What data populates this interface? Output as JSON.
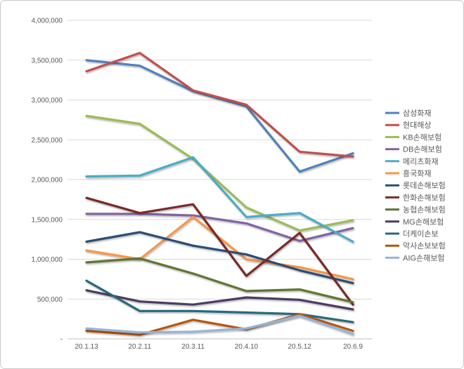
{
  "chart_data": {
    "type": "line",
    "title": "",
    "categories": [
      "20.1.13",
      "20.2.11",
      "20.3.11",
      "20.4.10",
      "20.5.12",
      "20.6.9"
    ],
    "series": [
      {
        "name": "삼성화재",
        "color": "#4F81BD",
        "values": [
          3500000,
          3430000,
          3110000,
          2920000,
          2100000,
          2330000
        ]
      },
      {
        "name": "현대해상",
        "color": "#C0504D",
        "values": [
          3360000,
          3590000,
          3120000,
          2940000,
          2350000,
          2290000
        ]
      },
      {
        "name": "KB손해보험",
        "color": "#9BBB59",
        "values": [
          2800000,
          2700000,
          2260000,
          1650000,
          1360000,
          1490000
        ]
      },
      {
        "name": "DB손해보험",
        "color": "#8064A2",
        "values": [
          1570000,
          1570000,
          1550000,
          1450000,
          1230000,
          1390000
        ]
      },
      {
        "name": "메리츠화재",
        "color": "#4BACC6",
        "values": [
          2040000,
          2050000,
          2280000,
          1530000,
          1580000,
          1220000
        ]
      },
      {
        "name": "흥국화재",
        "color": "#F79646",
        "values": [
          1110000,
          1000000,
          1530000,
          1000000,
          900000,
          750000
        ]
      },
      {
        "name": "롯데손해보험",
        "color": "#2C4D75",
        "values": [
          1220000,
          1340000,
          1170000,
          1060000,
          860000,
          700000
        ]
      },
      {
        "name": "한화손해보험",
        "color": "#772C2A",
        "values": [
          1770000,
          1580000,
          1690000,
          790000,
          1330000,
          430000
        ]
      },
      {
        "name": "농협손해보험",
        "color": "#5F7530",
        "values": [
          960000,
          1010000,
          820000,
          600000,
          620000,
          460000
        ]
      },
      {
        "name": "MG손해보험",
        "color": "#4D3B62",
        "values": [
          610000,
          470000,
          430000,
          520000,
          490000,
          370000
        ]
      },
      {
        "name": "더케이손보",
        "color": "#276A7D",
        "values": [
          730000,
          350000,
          350000,
          330000,
          310000,
          210000
        ]
      },
      {
        "name": "악사손보보험",
        "color": "#B65708",
        "values": [
          100000,
          50000,
          240000,
          120000,
          310000,
          100000
        ]
      },
      {
        "name": "AIG손해보험",
        "color": "#95B3D7",
        "values": [
          130000,
          80000,
          90000,
          130000,
          290000,
          60000
        ]
      }
    ],
    "y_axis": {
      "min": 0,
      "max": 4000000,
      "step": 500000,
      "tick_labels": [
        "-",
        "500,000",
        "1,000,000",
        "1,500,000",
        "2,000,000",
        "2,500,000",
        "3,000,000",
        "3,500,000",
        "4,000,000"
      ]
    },
    "grid": true,
    "legend_position": "right",
    "colors": {
      "gridline": "#D9D9D9",
      "axis_line": "#BFBFBF",
      "tick_text": "#595959",
      "legend_text": "#595959",
      "frame_border": "#C9C9C9",
      "background": "#FFFFFF"
    }
  }
}
